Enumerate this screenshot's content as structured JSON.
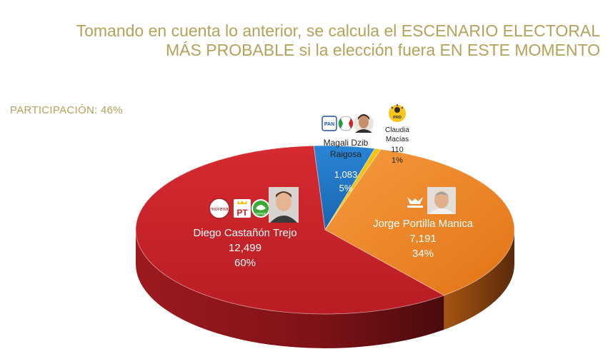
{
  "title": {
    "line1": "Tomando en cuenta lo anterior, se calcula el ESCENARIO ELECTORAL",
    "line2": "MÁS PROBABLE si la elección fuera EN ESTE MOMENTO"
  },
  "participation": "PARTICIPACIÓN: 46%",
  "colors": {
    "title": "#b5a25a",
    "morena": "#cc2229",
    "pan": "#1c74c4",
    "mc": "#f08428",
    "prd": "#f2c313"
  },
  "chart_data": {
    "type": "pie",
    "title": "",
    "slices": [
      {
        "name_lines": [
          "Diego Castañón Trejo"
        ],
        "value_label": "12,499",
        "value": 12499,
        "percent_label": "60%",
        "percent": 60,
        "parties": [
          "morena",
          "PT",
          "PVEM"
        ],
        "color": "#cc2229",
        "side_color": "#8e1519"
      },
      {
        "name_lines": [
          "Jorge Portilla Manica"
        ],
        "value_label": "7,191",
        "value": 7191,
        "percent_label": "34%",
        "percent": 34,
        "parties": [
          "MC"
        ],
        "color": "#f08428",
        "side_color": "#a4561a"
      },
      {
        "name_lines": [
          "Magali Dzib",
          "Raigosa"
        ],
        "value_label": "1,083",
        "value": 1083,
        "percent_label": "5%",
        "percent": 5,
        "parties": [
          "PAN",
          "PRI"
        ],
        "color": "#1c74c4",
        "side_color": "#114e87"
      },
      {
        "name_lines": [
          "Claudia",
          "Macías"
        ],
        "value_label": "110",
        "value": 110,
        "percent_label": "1%",
        "percent": 1,
        "parties": [
          "PRD"
        ],
        "color": "#f2c313",
        "side_color": "#a88608"
      }
    ],
    "logos": {
      "morena": "morena",
      "pt": "PT",
      "pvem": "VERDE",
      "pan": "PAN",
      "prd": "PRD"
    }
  }
}
